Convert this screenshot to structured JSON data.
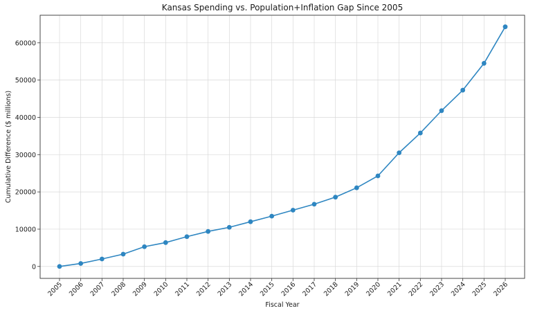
{
  "chart_data": {
    "type": "line",
    "title": "Kansas Spending vs. Population+Inflation Gap Since 2005",
    "xlabel": "Fiscal Year",
    "ylabel": "Cumulative Difference ($ millions)",
    "x": [
      "2005",
      "2006",
      "2007",
      "2008",
      "2009",
      "2010",
      "2011",
      "2012",
      "2013",
      "2014",
      "2015",
      "2016",
      "2017",
      "2018",
      "2019",
      "2020",
      "2021",
      "2022",
      "2023",
      "2024",
      "2025",
      "2026"
    ],
    "yticks": [
      0,
      10000,
      20000,
      30000,
      40000,
      50000,
      60000
    ],
    "ylim": [
      -3200,
      67400
    ],
    "grid": true,
    "series": [
      {
        "values": [
          0,
          800,
          2000,
          3300,
          5300,
          6400,
          8000,
          9400,
          10500,
          12000,
          13500,
          15100,
          16700,
          18600,
          21100,
          24300,
          30500,
          35800,
          41800,
          47300,
          54500,
          64300
        ],
        "color": "#2e86c1",
        "marker": "circle"
      }
    ]
  }
}
